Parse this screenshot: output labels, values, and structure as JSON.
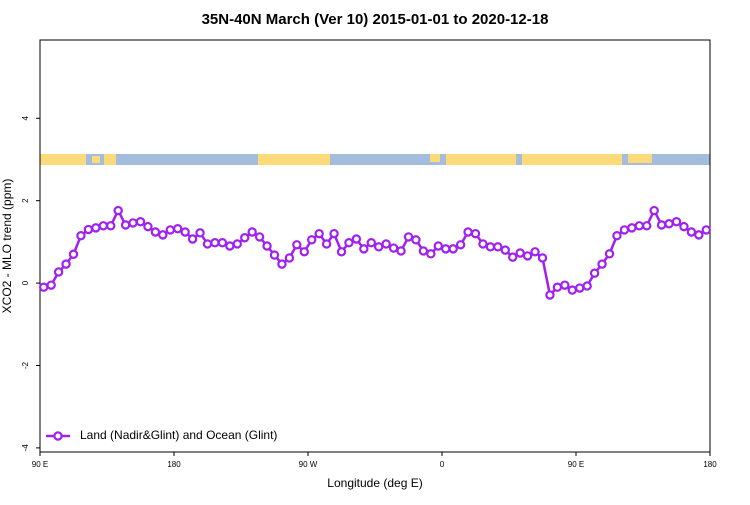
{
  "chart_data": {
    "type": "line",
    "title": "35N-40N March (Ver 10)   2015-01-01 to 2020-12-18",
    "xlabel": "Longitude (deg E)",
    "ylabel": "XCO2 - MLO trend (ppm)",
    "xlim": [
      90,
      540
    ],
    "ylim": [
      -4.1,
      5.9
    ],
    "xticks": [
      {
        "value": 90,
        "label": "90 E"
      },
      {
        "value": 180,
        "label": "180"
      },
      {
        "value": 270,
        "label": "90 W"
      },
      {
        "value": 360,
        "label": "0"
      },
      {
        "value": 450,
        "label": "90 E"
      },
      {
        "value": 540,
        "label": "180"
      }
    ],
    "yticks": [
      -4,
      -2,
      0,
      2,
      4
    ],
    "legend": "bottom-left",
    "x": [
      92.5,
      97.5,
      102.5,
      107.5,
      112.5,
      117.5,
      122.5,
      127.5,
      132.5,
      137.5,
      142.5,
      147.5,
      152.5,
      157.5,
      162.5,
      167.5,
      172.5,
      177.5,
      182.5,
      187.5,
      192.5,
      197.5,
      202.5,
      207.5,
      212.5,
      217.5,
      222.5,
      227.5,
      232.5,
      237.5,
      242.5,
      247.5,
      252.5,
      257.5,
      262.5,
      267.5,
      272.5,
      277.5,
      282.5,
      287.5,
      292.5,
      297.5,
      302.5,
      307.5,
      312.5,
      317.5,
      322.5,
      327.5,
      332.5,
      337.5,
      342.5,
      347.5,
      352.5,
      357.5,
      362.5,
      367.5,
      372.5,
      377.5,
      382.5,
      387.5,
      392.5,
      397.5,
      402.5,
      407.5,
      412.5,
      417.5,
      422.5,
      427.5,
      432.5,
      437.5,
      442.5,
      447.5,
      452.5,
      457.5,
      462.5,
      467.5,
      472.5,
      477.5,
      482.5,
      487.5,
      492.5,
      497.5,
      502.5,
      507.5,
      512.5,
      517.5,
      522.5,
      527.5,
      532.5,
      537.5
    ],
    "series": [
      {
        "name": "Land (Nadir&Glint) and Ocean (Glint)",
        "color": "#a020f0",
        "values": [
          -0.1,
          -0.05,
          0.27,
          0.46,
          0.7,
          1.15,
          1.3,
          1.34,
          1.39,
          1.39,
          1.76,
          1.41,
          1.46,
          1.49,
          1.37,
          1.24,
          1.17,
          1.29,
          1.32,
          1.24,
          1.07,
          1.22,
          0.95,
          0.98,
          0.98,
          0.9,
          0.95,
          1.1,
          1.24,
          1.12,
          0.9,
          0.68,
          0.46,
          0.61,
          0.93,
          0.76,
          1.05,
          1.2,
          0.95,
          1.2,
          0.76,
          0.98,
          1.07,
          0.83,
          0.98,
          0.88,
          0.95,
          0.85,
          0.78,
          1.12,
          1.05,
          0.78,
          0.71,
          0.9,
          0.83,
          0.83,
          0.93,
          1.24,
          1.2,
          0.95,
          0.88,
          0.88,
          0.8,
          0.63,
          0.73,
          0.66,
          0.76,
          0.61,
          -0.29,
          -0.1,
          -0.05,
          -0.17,
          -0.12,
          -0.07,
          0.24,
          0.46,
          0.71,
          1.15,
          1.29,
          1.34,
          1.39,
          1.39,
          1.76,
          1.41,
          1.44,
          1.49,
          1.37,
          1.24,
          1.17,
          1.29
        ]
      }
    ]
  }
}
